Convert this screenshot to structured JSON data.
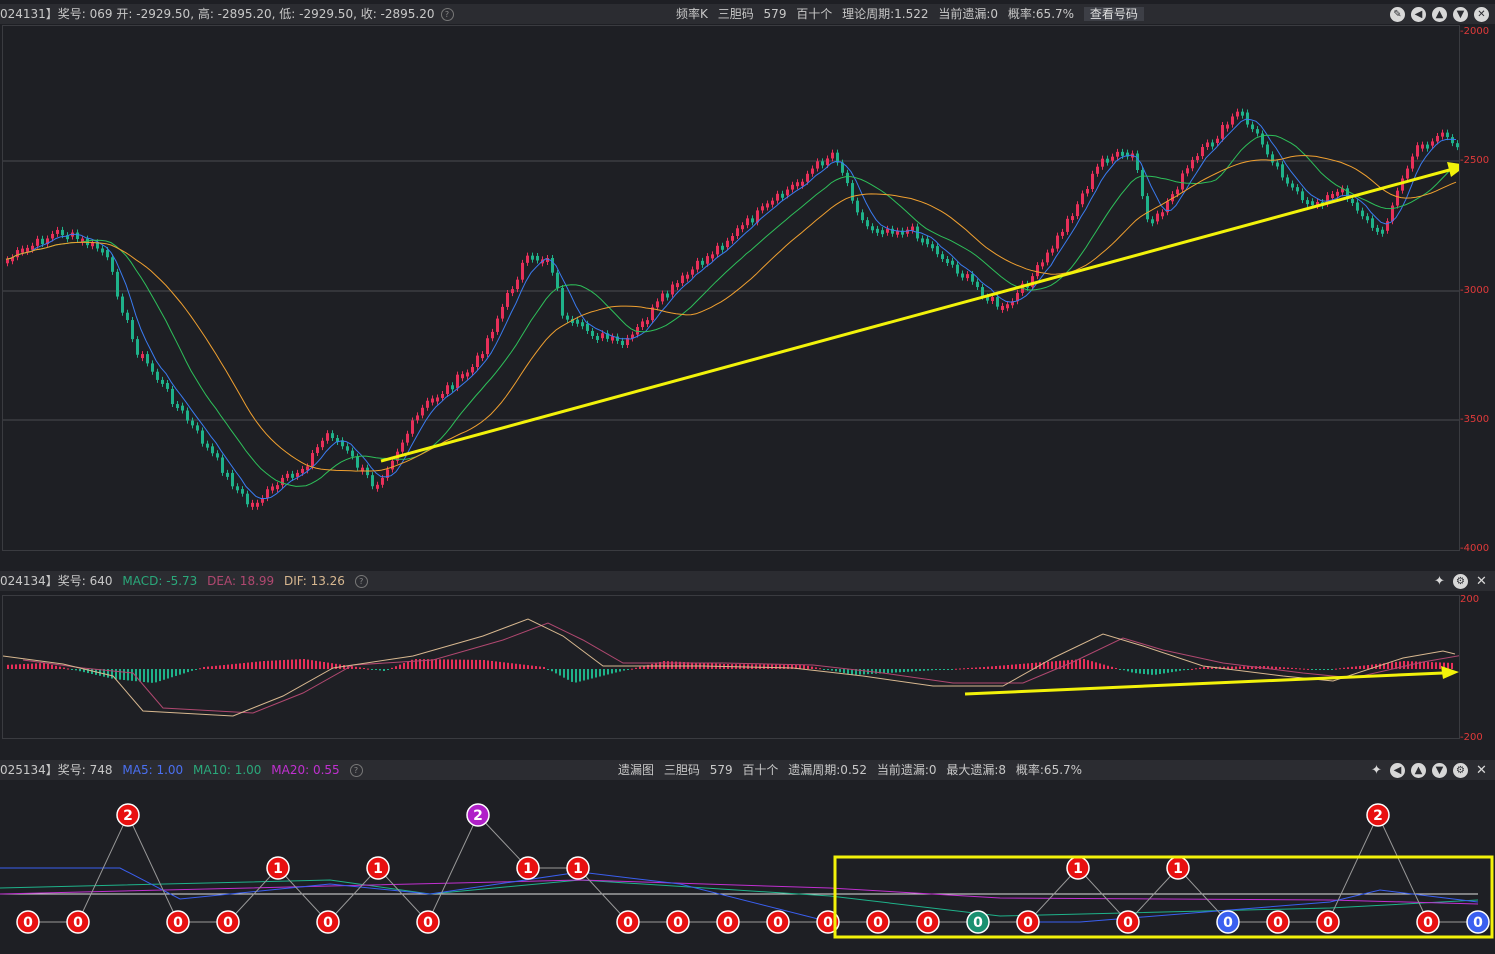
{
  "top_bar": {
    "info": "024131】奖号: 069  开: -2929.50, 高: -2895.20, 低: -2929.50, 收: -2895.20",
    "center": [
      "频率K",
      "三胆码",
      "579",
      "百十个",
      "理论周期:1.522",
      "当前遗漏:0",
      "概率:65.7%"
    ],
    "button": "查看号码",
    "icons": [
      "edit-icon",
      "back-icon",
      "up-icon",
      "down-icon",
      "settings-icon"
    ]
  },
  "kline_axis": [
    "-2000",
    "-2500",
    "-3000",
    "-3500",
    "-4000"
  ],
  "macd_bar": {
    "prefix": "024134】奖号: 640",
    "macd": "MACD: -5.73",
    "dea": "DEA: 18.99",
    "dif": "DIF: 13.26"
  },
  "macd_axis": [
    "200",
    "-200"
  ],
  "bottom_bar": {
    "prefix": "025134】奖号: 748",
    "ma5": "MA5: 1.00",
    "ma10": "MA10: 1.00",
    "ma20": "MA20: 0.55",
    "center": [
      "遗漏图",
      "三胆码",
      "579",
      "百十个",
      "遗漏周期:0.52",
      "当前遗漏:0",
      "最大遗漏:8",
      "概率:65.7%"
    ]
  },
  "miss_nodes": [
    "0",
    "0",
    "2",
    "0",
    "0",
    "1",
    "0",
    "1",
    "0",
    "2",
    "1",
    "1",
    "0",
    "0",
    "0",
    "0",
    "0",
    "0",
    "0",
    "0",
    "0",
    "1",
    "0",
    "1",
    "0",
    "0",
    "0",
    "2",
    "0",
    "0"
  ],
  "colors": {
    "up": "#e8305a",
    "down": "#1fb28a",
    "ma5": "#3a7bf0",
    "ma10": "#2ec05a",
    "ma20": "#f0a030",
    "arrow": "#f2f20a"
  }
}
